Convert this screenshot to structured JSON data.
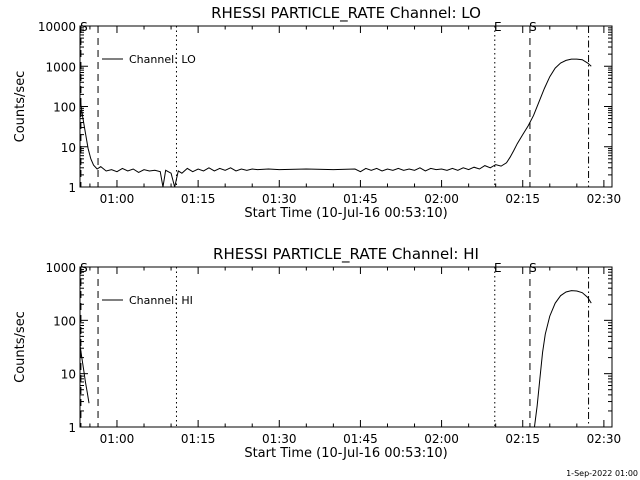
{
  "footer": {
    "timestamp": "1-Sep-2022 01:00"
  },
  "chart_data": [
    {
      "type": "line",
      "title": "RHESSI PARTICLE_RATE Channel: LO",
      "xlabel": "Start Time (10-Jul-16 00:53:10)",
      "ylabel": "Counts/sec",
      "y_scale": "log",
      "xlim": [
        "00:53:10",
        "02:31:30"
      ],
      "ylim": [
        1,
        10000
      ],
      "x_ticks": [
        "01:00",
        "01:15",
        "01:30",
        "01:45",
        "02:00",
        "02:15",
        "02:30"
      ],
      "y_ticks": [
        "1",
        "10",
        "100",
        "1000",
        "10000"
      ],
      "legend": {
        "entry": "Channel: LO",
        "placement": "top-left"
      },
      "markers": [
        {
          "time": "00:53:20",
          "style": "dashed",
          "label": "S"
        },
        {
          "time": "00:56:30",
          "style": "dashed",
          "label": ""
        },
        {
          "time": "01:11:00",
          "style": "dotted",
          "label": ""
        },
        {
          "time": "02:09:50",
          "style": "dotted",
          "label": "E"
        },
        {
          "time": "02:16:20",
          "style": "dashed",
          "label": "S"
        },
        {
          "time": "02:27:10",
          "style": "dashdot",
          "label": ""
        }
      ],
      "series": [
        {
          "points": [
            [
              "00:53:10",
              160
            ],
            [
              "00:53:40",
              55
            ],
            [
              "00:54:10",
              22
            ],
            [
              "00:54:40",
              9
            ],
            [
              "00:55:10",
              5
            ],
            [
              "00:55:40",
              3.5
            ],
            [
              "00:56:20",
              2.8
            ],
            [
              "00:57:00",
              3.2
            ],
            [
              "00:58:00",
              2.5
            ],
            [
              "00:59:00",
              2.7
            ],
            [
              "01:00:00",
              2.4
            ],
            [
              "01:01:00",
              2.9
            ],
            [
              "01:02:00",
              2.5
            ],
            [
              "01:03:00",
              2.8
            ],
            [
              "01:04:00",
              2.3
            ],
            [
              "01:05:00",
              2.7
            ],
            [
              "01:06:00",
              2.5
            ],
            [
              "01:07:00",
              2.6
            ],
            [
              "01:08:00",
              2.4
            ],
            [
              "01:08:30",
              1.0
            ],
            [
              "01:09:00",
              2.6
            ],
            [
              "01:10:00",
              2.2
            ],
            [
              "01:10:40",
              1.0
            ],
            [
              "01:11:20",
              2.5
            ],
            [
              "01:12:00",
              2.2
            ],
            [
              "01:13:00",
              2.9
            ],
            [
              "01:14:00",
              2.4
            ],
            [
              "01:15:00",
              2.8
            ],
            [
              "01:16:00",
              2.5
            ],
            [
              "01:17:00",
              3.0
            ],
            [
              "01:18:00",
              2.5
            ],
            [
              "01:19:00",
              2.9
            ],
            [
              "01:20:00",
              2.6
            ],
            [
              "01:21:00",
              3.0
            ],
            [
              "01:22:00",
              2.5
            ],
            [
              "01:23:00",
              2.8
            ],
            [
              "01:24:00",
              2.6
            ],
            [
              "01:25:00",
              2.8
            ],
            [
              "01:26:00",
              2.7
            ],
            [
              "01:28:00",
              2.8
            ],
            [
              "01:30:00",
              2.7
            ],
            [
              "01:35:00",
              2.8
            ],
            [
              "01:40:00",
              2.7
            ],
            [
              "01:44:00",
              2.8
            ],
            [
              "01:45:00",
              2.4
            ],
            [
              "01:46:00",
              2.9
            ],
            [
              "01:47:00",
              2.6
            ],
            [
              "01:48:00",
              2.9
            ],
            [
              "01:49:00",
              2.5
            ],
            [
              "01:50:00",
              2.8
            ],
            [
              "01:51:00",
              2.6
            ],
            [
              "01:52:00",
              2.9
            ],
            [
              "01:53:00",
              2.6
            ],
            [
              "01:54:00",
              2.8
            ],
            [
              "01:55:00",
              2.6
            ],
            [
              "01:56:00",
              3.0
            ],
            [
              "01:57:00",
              2.5
            ],
            [
              "01:58:00",
              2.9
            ],
            [
              "01:59:00",
              2.7
            ],
            [
              "02:00:00",
              2.8
            ],
            [
              "02:01:00",
              2.6
            ],
            [
              "02:02:00",
              2.9
            ],
            [
              "02:03:00",
              2.6
            ],
            [
              "02:04:00",
              3.0
            ],
            [
              "02:05:00",
              2.7
            ],
            [
              "02:06:00",
              3.1
            ],
            [
              "02:07:00",
              2.8
            ],
            [
              "02:08:00",
              3.4
            ],
            [
              "02:09:00",
              3.0
            ],
            [
              "02:10:00",
              3.6
            ],
            [
              "02:11:00",
              3.3
            ],
            [
              "02:12:00",
              4.0
            ],
            [
              "02:12:40",
              5.5
            ],
            [
              "02:13:20",
              8
            ],
            [
              "02:14:00",
              12
            ],
            [
              "02:15:00",
              20
            ],
            [
              "02:16:00",
              33
            ],
            [
              "02:17:00",
              60
            ],
            [
              "02:18:00",
              130
            ],
            [
              "02:19:00",
              280
            ],
            [
              "02:20:00",
              550
            ],
            [
              "02:21:00",
              900
            ],
            [
              "02:22:00",
              1200
            ],
            [
              "02:23:00",
              1400
            ],
            [
              "02:24:00",
              1500
            ],
            [
              "02:25:00",
              1500
            ],
            [
              "02:26:00",
              1450
            ],
            [
              "02:27:00",
              1200
            ],
            [
              "02:27:40",
              1000
            ]
          ]
        }
      ]
    },
    {
      "type": "line",
      "title": "RHESSI PARTICLE_RATE Channel: HI",
      "xlabel": "Start Time (10-Jul-16 00:53:10)",
      "ylabel": "Counts/sec",
      "y_scale": "log",
      "xlim": [
        "00:53:10",
        "02:31:30"
      ],
      "ylim": [
        1,
        1000
      ],
      "x_ticks": [
        "01:00",
        "01:15",
        "01:30",
        "01:45",
        "02:00",
        "02:15",
        "02:30"
      ],
      "y_ticks": [
        "1",
        "10",
        "100",
        "1000"
      ],
      "legend": {
        "entry": "Channel: HI",
        "placement": "top-left"
      },
      "markers": [
        {
          "time": "00:53:20",
          "style": "dashed",
          "label": "S"
        },
        {
          "time": "00:56:30",
          "style": "dashed",
          "label": ""
        },
        {
          "time": "01:11:00",
          "style": "dotted",
          "label": ""
        },
        {
          "time": "02:09:50",
          "style": "dotted",
          "label": "E"
        },
        {
          "time": "02:16:20",
          "style": "dashed",
          "label": "S"
        },
        {
          "time": "02:27:10",
          "style": "dashdot",
          "label": ""
        }
      ],
      "series": [
        {
          "points": [
            [
              "00:53:10",
              35
            ],
            [
              "00:53:30",
              20
            ],
            [
              "00:53:50",
              12
            ],
            [
              "00:54:10",
              7
            ],
            [
              "00:54:30",
              4.5
            ],
            [
              "00:54:50",
              2.8
            ]
          ]
        },
        {
          "points": [
            [
              "02:17:10",
              1.0
            ],
            [
              "02:17:40",
              2.5
            ],
            [
              "02:18:10",
              8
            ],
            [
              "02:18:40",
              25
            ],
            [
              "02:19:10",
              55
            ],
            [
              "02:20:00",
              120
            ],
            [
              "02:21:00",
              210
            ],
            [
              "02:22:00",
              290
            ],
            [
              "02:23:00",
              340
            ],
            [
              "02:24:00",
              360
            ],
            [
              "02:25:00",
              355
            ],
            [
              "02:26:00",
              330
            ],
            [
              "02:27:00",
              270
            ],
            [
              "02:27:40",
              210
            ]
          ]
        }
      ]
    }
  ]
}
